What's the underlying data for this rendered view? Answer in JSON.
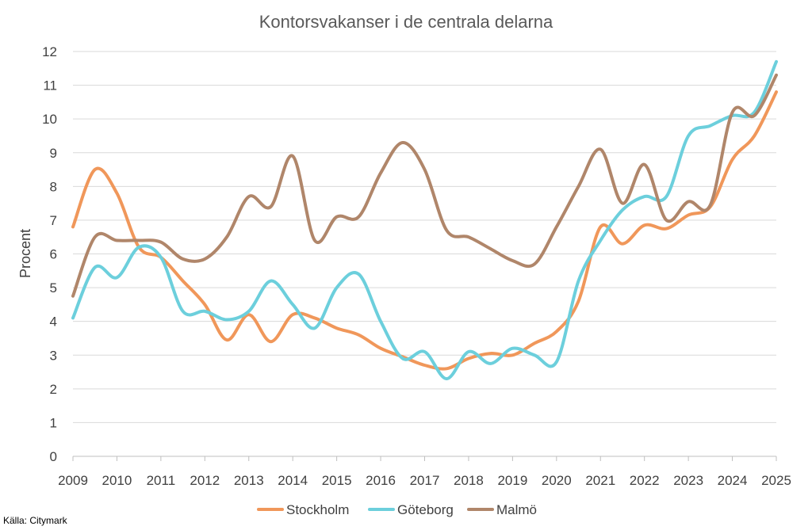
{
  "chart_data": {
    "type": "line",
    "title": "Kontorsvakanser i de centrala delarna",
    "xlabel": "",
    "ylabel": "Procent",
    "ylim": [
      0,
      12
    ],
    "yticks": [
      0,
      1,
      2,
      3,
      4,
      5,
      6,
      7,
      8,
      9,
      10,
      11,
      12
    ],
    "xlim": [
      2009,
      2025
    ],
    "xticks": [
      "2009",
      "2010",
      "2011",
      "2012",
      "2013",
      "2014",
      "2015",
      "2016",
      "2017",
      "2018",
      "2019",
      "2020",
      "2021",
      "2022",
      "2023",
      "2024",
      "2025"
    ],
    "grid": true,
    "legend": "bottom",
    "series": [
      {
        "name": "Stockholm",
        "color": "#f0975a",
        "points": [
          [
            2009,
            6.8
          ],
          [
            2009.5,
            8.5
          ],
          [
            2010,
            7.8
          ],
          [
            2010.5,
            6.2
          ],
          [
            2011,
            5.9
          ],
          [
            2011.5,
            5.2
          ],
          [
            2012,
            4.5
          ],
          [
            2012.5,
            3.45
          ],
          [
            2013,
            4.2
          ],
          [
            2013.5,
            3.4
          ],
          [
            2014,
            4.2
          ],
          [
            2014.5,
            4.1
          ],
          [
            2015,
            3.8
          ],
          [
            2015.5,
            3.6
          ],
          [
            2016,
            3.2
          ],
          [
            2016.5,
            2.95
          ],
          [
            2017,
            2.7
          ],
          [
            2017.5,
            2.6
          ],
          [
            2018,
            2.9
          ],
          [
            2018.5,
            3.05
          ],
          [
            2019,
            3.0
          ],
          [
            2019.5,
            3.35
          ],
          [
            2020,
            3.7
          ],
          [
            2020.5,
            4.6
          ],
          [
            2021,
            6.8
          ],
          [
            2021.5,
            6.3
          ],
          [
            2022,
            6.85
          ],
          [
            2022.5,
            6.75
          ],
          [
            2023,
            7.15
          ],
          [
            2023.5,
            7.4
          ],
          [
            2024,
            8.8
          ],
          [
            2024.5,
            9.5
          ],
          [
            2025,
            10.8
          ]
        ]
      },
      {
        "name": "Göteborg",
        "color": "#6ccfdc",
        "points": [
          [
            2009,
            4.1
          ],
          [
            2009.5,
            5.6
          ],
          [
            2010,
            5.3
          ],
          [
            2010.5,
            6.2
          ],
          [
            2011,
            5.9
          ],
          [
            2011.5,
            4.3
          ],
          [
            2012,
            4.3
          ],
          [
            2012.5,
            4.05
          ],
          [
            2013,
            4.3
          ],
          [
            2013.5,
            5.2
          ],
          [
            2014,
            4.5
          ],
          [
            2014.5,
            3.8
          ],
          [
            2015,
            5.0
          ],
          [
            2015.5,
            5.4
          ],
          [
            2016,
            4.0
          ],
          [
            2016.5,
            2.9
          ],
          [
            2017,
            3.1
          ],
          [
            2017.5,
            2.3
          ],
          [
            2018,
            3.1
          ],
          [
            2018.5,
            2.75
          ],
          [
            2019,
            3.2
          ],
          [
            2019.5,
            3.0
          ],
          [
            2020,
            2.8
          ],
          [
            2020.5,
            5.2
          ],
          [
            2021,
            6.4
          ],
          [
            2021.5,
            7.3
          ],
          [
            2022,
            7.7
          ],
          [
            2022.5,
            7.7
          ],
          [
            2023,
            9.5
          ],
          [
            2023.5,
            9.8
          ],
          [
            2024,
            10.1
          ],
          [
            2024.5,
            10.2
          ],
          [
            2025,
            11.7
          ]
        ]
      },
      {
        "name": "Malmö",
        "color": "#b0866a",
        "points": [
          [
            2009,
            4.75
          ],
          [
            2009.5,
            6.5
          ],
          [
            2010,
            6.4
          ],
          [
            2010.5,
            6.4
          ],
          [
            2011,
            6.35
          ],
          [
            2011.5,
            5.85
          ],
          [
            2012,
            5.85
          ],
          [
            2012.5,
            6.5
          ],
          [
            2013,
            7.7
          ],
          [
            2013.5,
            7.4
          ],
          [
            2014,
            8.9
          ],
          [
            2014.5,
            6.4
          ],
          [
            2015,
            7.1
          ],
          [
            2015.5,
            7.1
          ],
          [
            2016,
            8.4
          ],
          [
            2016.5,
            9.3
          ],
          [
            2017,
            8.5
          ],
          [
            2017.5,
            6.7
          ],
          [
            2018,
            6.5
          ],
          [
            2018.5,
            6.15
          ],
          [
            2019,
            5.8
          ],
          [
            2019.5,
            5.7
          ],
          [
            2020,
            6.8
          ],
          [
            2020.5,
            8.0
          ],
          [
            2021,
            9.1
          ],
          [
            2021.5,
            7.5
          ],
          [
            2022,
            8.65
          ],
          [
            2022.5,
            7.0
          ],
          [
            2023,
            7.55
          ],
          [
            2023.5,
            7.45
          ],
          [
            2024,
            10.2
          ],
          [
            2024.5,
            10.1
          ],
          [
            2025,
            11.3
          ]
        ]
      }
    ],
    "source": "Källa: Citymark"
  }
}
